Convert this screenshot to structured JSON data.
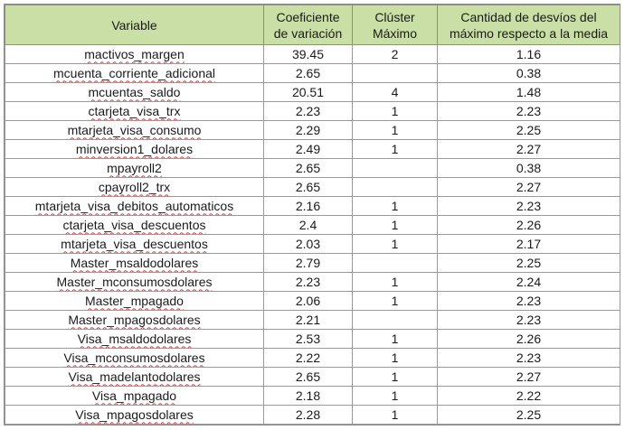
{
  "table": {
    "headers": {
      "variable": "Variable",
      "coef": "Coeficiente de variación",
      "cluster": "Clúster Máximo",
      "desvios": "Cantidad de desvíos del máximo respecto a la media"
    },
    "rows": [
      {
        "variable": "mactivos_margen",
        "coef": "39.45",
        "cluster": "2",
        "desvios": "1.16"
      },
      {
        "variable": "mcuenta_corriente_adicional",
        "coef": "2.65",
        "cluster": "",
        "desvios": "0.38"
      },
      {
        "variable": "mcuentas_saldo",
        "coef": "20.51",
        "cluster": "4",
        "desvios": "1.48"
      },
      {
        "variable": "ctarjeta_visa_trx",
        "coef": "2.23",
        "cluster": "1",
        "desvios": "2.23"
      },
      {
        "variable": "mtarjeta_visa_consumo",
        "coef": "2.29",
        "cluster": "1",
        "desvios": "2.25"
      },
      {
        "variable": "minversion1_dolares",
        "coef": "2.49",
        "cluster": "1",
        "desvios": "2.27"
      },
      {
        "variable": "mpayroll2",
        "coef": "2.65",
        "cluster": "",
        "desvios": "0.38"
      },
      {
        "variable": "cpayroll2_trx",
        "coef": "2.65",
        "cluster": "",
        "desvios": "2.27"
      },
      {
        "variable": "mtarjeta_visa_debitos_automaticos",
        "coef": "2.16",
        "cluster": "1",
        "desvios": "2.23"
      },
      {
        "variable": "ctarjeta_visa_descuentos",
        "coef": "2.4",
        "cluster": "1",
        "desvios": "2.26"
      },
      {
        "variable": "mtarjeta_visa_descuentos",
        "coef": "2.03",
        "cluster": "1",
        "desvios": "2.17"
      },
      {
        "variable": "Master_msaldodolares",
        "coef": "2.79",
        "cluster": "",
        "desvios": "2.25"
      },
      {
        "variable": "Master_mconsumosdolares",
        "coef": "2.23",
        "cluster": "1",
        "desvios": "2.24"
      },
      {
        "variable": "Master_mpagado",
        "coef": "2.06",
        "cluster": "1",
        "desvios": "2.23"
      },
      {
        "variable": "Master_mpagosdolares",
        "coef": "2.21",
        "cluster": "",
        "desvios": "2.23"
      },
      {
        "variable": "Visa_msaldodolares",
        "coef": "2.53",
        "cluster": "1",
        "desvios": "2.26"
      },
      {
        "variable": "Visa_mconsumosdolares",
        "coef": "2.22",
        "cluster": "1",
        "desvios": "2.23"
      },
      {
        "variable": "Visa_madelantodolares",
        "coef": "2.65",
        "cluster": "1",
        "desvios": "2.27"
      },
      {
        "variable": "Visa_mpagado",
        "coef": "2.18",
        "cluster": "1",
        "desvios": "2.22"
      },
      {
        "variable": "Visa_mpagosdolares",
        "coef": "2.28",
        "cluster": "1",
        "desvios": "2.25"
      }
    ]
  }
}
